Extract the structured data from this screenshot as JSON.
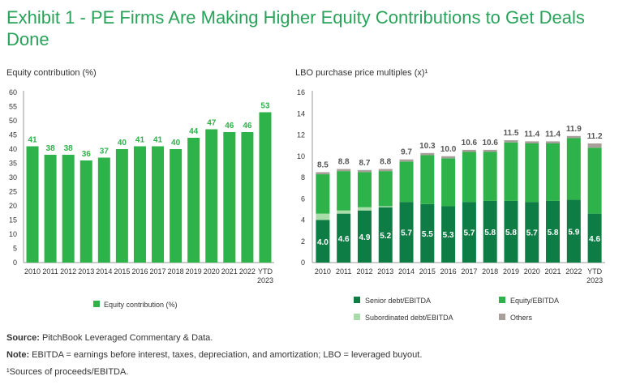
{
  "title": "Exhibit 1 - PE Firms Are Making Higher Equity Contributions to Get Deals Done",
  "footer": {
    "source_label": "Source:",
    "source_text": "PitchBook Leveraged Commentary & Data.",
    "note_label": "Note:",
    "note_text": "EBITDA = earnings before interest, taxes, depreciation, and amortization; LBO = leveraged buyout.",
    "footnote": "¹Sources of proceeds/EBITDA."
  },
  "colors": {
    "title": "#29a35a",
    "equity": "#2db34a",
    "senior": "#0e7c45",
    "subordinated": "#a8dca8",
    "others": "#a89f9a",
    "axis": "#999999",
    "total_label": "#555555"
  },
  "chart_data": [
    {
      "type": "bar",
      "title": "Equity contribution (%)",
      "categories": [
        "2010",
        "2011",
        "2012",
        "2013",
        "2014",
        "2015",
        "2016",
        "2017",
        "2018",
        "2019",
        "2020",
        "2021",
        "2022",
        "YTD 2023"
      ],
      "series": [
        {
          "name": "Equity contribution (%)",
          "values": [
            41,
            38,
            38,
            36,
            37,
            40,
            41,
            41,
            40,
            44,
            47,
            46,
            46,
            53
          ]
        }
      ],
      "ylim": [
        0,
        60
      ],
      "yticks": [
        0,
        5,
        10,
        15,
        20,
        25,
        30,
        35,
        40,
        45,
        50,
        55,
        60
      ],
      "legend": "bottom"
    },
    {
      "type": "bar",
      "stacked": true,
      "title": "LBO purchase price multiples (x)¹",
      "categories": [
        "2010",
        "2011",
        "2012",
        "2013",
        "2014",
        "2015",
        "2016",
        "2017",
        "2018",
        "2019",
        "2020",
        "2021",
        "2022",
        "YTD 2023"
      ],
      "series": [
        {
          "name": "Senior debt/EBITDA",
          "values": [
            4.0,
            4.6,
            4.9,
            5.2,
            5.7,
            5.5,
            5.3,
            5.7,
            5.8,
            5.8,
            5.7,
            5.8,
            5.9,
            4.6
          ],
          "show_labels": true
        },
        {
          "name": "Subordinated debt/EBITDA",
          "values": [
            0.6,
            0.3,
            0.3,
            0.1,
            0.0,
            0.0,
            0.0,
            0.0,
            0.0,
            0.0,
            0.0,
            0.0,
            0.0,
            0.0
          ]
        },
        {
          "name": "Equity/EBITDA",
          "values": [
            3.7,
            3.7,
            3.3,
            3.3,
            3.8,
            4.6,
            4.5,
            4.7,
            4.6,
            5.5,
            5.5,
            5.4,
            5.8,
            6.2
          ]
        },
        {
          "name": "Others",
          "values": [
            0.2,
            0.2,
            0.2,
            0.2,
            0.2,
            0.2,
            0.2,
            0.2,
            0.2,
            0.2,
            0.2,
            0.2,
            0.2,
            0.4
          ]
        }
      ],
      "totals": [
        8.5,
        8.8,
        8.7,
        8.8,
        9.7,
        10.3,
        10.0,
        10.6,
        10.6,
        11.5,
        11.4,
        11.4,
        11.9,
        11.2
      ],
      "ylim": [
        0,
        16
      ],
      "yticks": [
        0,
        2,
        4,
        6,
        8,
        10,
        12,
        14,
        16
      ],
      "legend": "bottom"
    }
  ]
}
